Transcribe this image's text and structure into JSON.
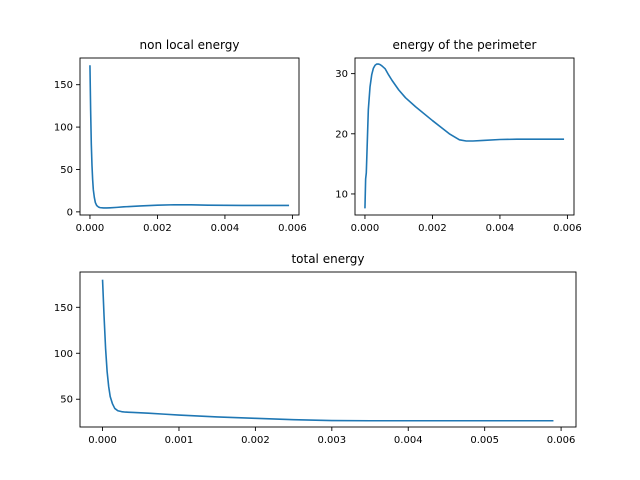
{
  "chart_data": [
    {
      "type": "line",
      "title": "non local energy",
      "xlim": [
        -0.000295,
        0.006195
      ],
      "ylim": [
        -3.7,
        181.5
      ],
      "xticks": [
        0.0,
        0.002,
        0.004,
        0.006
      ],
      "xtick_labels": [
        "0.000",
        "0.002",
        "0.004",
        "0.006"
      ],
      "yticks": [
        0,
        50,
        100,
        150
      ],
      "ytick_labels": [
        "0",
        "50",
        "100",
        "150"
      ],
      "color": "#1f77b4",
      "series": [
        {
          "x": [
            0.0,
            2e-05,
            4e-05,
            6e-05,
            8e-05,
            0.0001,
            0.00013,
            0.00016,
            0.0002,
            0.00025,
            0.0003,
            0.0004,
            0.0005,
            0.0006,
            0.0008,
            0.001,
            0.0015,
            0.002,
            0.0025,
            0.003,
            0.0035,
            0.004,
            0.0045,
            0.005,
            0.0055,
            0.0059
          ],
          "y": [
            173,
            120,
            80,
            55,
            38,
            26,
            17,
            11,
            7.5,
            5.8,
            5.0,
            4.6,
            4.6,
            4.8,
            5.3,
            5.9,
            7.0,
            7.9,
            8.4,
            8.3,
            7.9,
            7.7,
            7.6,
            7.6,
            7.6,
            7.6
          ]
        }
      ]
    },
    {
      "type": "line",
      "title": "energy of the perimeter",
      "xlim": [
        -0.000295,
        0.006195
      ],
      "ylim": [
        6.5,
        32.6
      ],
      "xticks": [
        0.0,
        0.002,
        0.004,
        0.006
      ],
      "xtick_labels": [
        "0.000",
        "0.002",
        "0.004",
        "0.006"
      ],
      "yticks": [
        10,
        20,
        30
      ],
      "ytick_labels": [
        "10",
        "20",
        "30"
      ],
      "color": "#1f77b4",
      "series": [
        {
          "x": [
            0.0,
            2e-05,
            4e-05,
            6e-05,
            8e-05,
            0.0001,
            0.00015,
            0.0002,
            0.00025,
            0.0003,
            0.00035,
            0.0004,
            0.00045,
            0.0005,
            0.0006,
            0.0007,
            0.0008,
            0.001,
            0.0012,
            0.0015,
            0.002,
            0.0025,
            0.0028,
            0.003,
            0.0032,
            0.0035,
            0.004,
            0.0045,
            0.005,
            0.0055,
            0.0059
          ],
          "y": [
            7.6,
            12.5,
            13.5,
            17.0,
            20.5,
            24.0,
            27.8,
            29.8,
            30.9,
            31.4,
            31.6,
            31.6,
            31.5,
            31.3,
            30.8,
            29.8,
            28.9,
            27.3,
            26.0,
            24.5,
            22.2,
            20.0,
            19.0,
            18.8,
            18.8,
            18.9,
            19.05,
            19.1,
            19.1,
            19.1,
            19.1
          ]
        }
      ]
    },
    {
      "type": "line",
      "title": "total energy",
      "xlim": [
        -0.000295,
        0.006195
      ],
      "ylim": [
        19.8,
        188.4
      ],
      "xticks": [
        0.0,
        0.001,
        0.002,
        0.003,
        0.004,
        0.005,
        0.006
      ],
      "xtick_labels": [
        "0.000",
        "0.001",
        "0.002",
        "0.003",
        "0.004",
        "0.005",
        "0.006"
      ],
      "yticks": [
        50,
        100,
        150
      ],
      "ytick_labels": [
        "50",
        "100",
        "150"
      ],
      "color": "#1f77b4",
      "series": [
        {
          "x": [
            0.0,
            2e-05,
            4e-05,
            6e-05,
            8e-05,
            0.0001,
            0.00013,
            0.00016,
            0.0002,
            0.00025,
            0.0003,
            0.0004,
            0.0005,
            0.0006,
            0.0008,
            0.001,
            0.0015,
            0.002,
            0.0025,
            0.003,
            0.0035,
            0.004,
            0.0045,
            0.005,
            0.0055,
            0.0059
          ],
          "y": [
            180,
            140,
            105,
            80,
            64,
            53,
            45,
            40,
            37.5,
            36.5,
            36.0,
            35.6,
            35.2,
            34.8,
            33.8,
            32.8,
            30.8,
            29.2,
            27.8,
            26.8,
            26.6,
            26.6,
            26.6,
            26.6,
            26.6,
            26.6
          ]
        }
      ]
    }
  ]
}
